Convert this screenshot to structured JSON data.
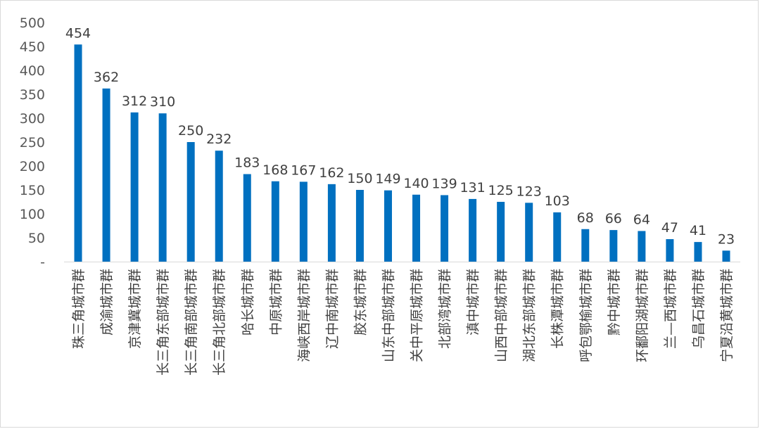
{
  "chart_data": {
    "type": "bar",
    "title": "",
    "xlabel": "",
    "ylabel": "",
    "ylim": [
      0,
      500
    ],
    "yticks": [
      "-",
      "50",
      "100",
      "150",
      "200",
      "250",
      "300",
      "350",
      "400",
      "450",
      "500"
    ],
    "grid": false,
    "legend": "none",
    "bar_color": "#0070C0",
    "categories": [
      "珠三角城市群",
      "成渝城市群",
      "京津冀城市群",
      "长三角东部城市群",
      "长三角南部城市群",
      "长三角北部城市群",
      "哈长城市群",
      "中原城市群",
      "海峡西岸城市群",
      "辽中南城市群",
      "胶东城市群",
      "山东中部城市群",
      "关中平原城市群",
      "北部湾城市群",
      "滇中城市群",
      "山西中部城市群",
      "湖北东部城市群",
      "长株潭城市群",
      "呼包鄂榆城市群",
      "黔中城市群",
      "环鄱阳湖城市群",
      "兰—西城市群",
      "乌昌石城市群",
      "宁夏沿黄城市群"
    ],
    "values": [
      454,
      362,
      312,
      310,
      250,
      232,
      183,
      168,
      167,
      162,
      150,
      149,
      140,
      139,
      131,
      125,
      123,
      103,
      68,
      66,
      64,
      47,
      41,
      23
    ]
  }
}
